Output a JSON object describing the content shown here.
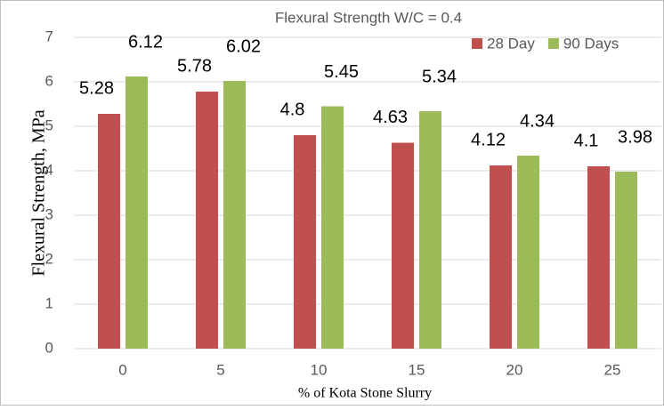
{
  "chart_data": {
    "type": "bar",
    "title": "Flexural Strength W/C = 0.4",
    "x_label": "% of  Kota Stone Slurry",
    "y_label": "Flexural Strength, MPa",
    "categories": [
      "0",
      "5",
      "10",
      "15",
      "20",
      "25"
    ],
    "series": [
      {
        "name": "28 Day",
        "color": "#c0504d",
        "values": [
          5.28,
          5.78,
          4.8,
          4.63,
          4.12,
          4.1
        ]
      },
      {
        "name": "90 Days",
        "color": "#9bbb59",
        "values": [
          6.12,
          6.02,
          5.45,
          5.34,
          4.34,
          3.98
        ]
      }
    ],
    "ylim": [
      0,
      7
    ],
    "yticks": [
      0,
      1,
      2,
      3,
      4,
      5,
      6,
      7
    ],
    "grid": true,
    "legend": "top-right"
  }
}
